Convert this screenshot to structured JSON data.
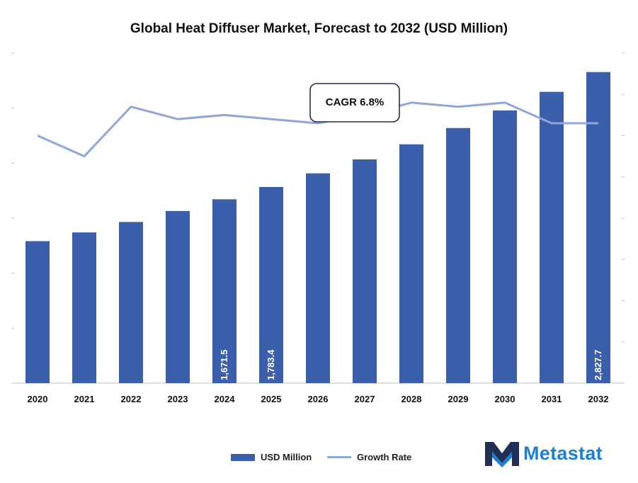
{
  "chart_data": {
    "type": "bar",
    "title": "Global Heat Diffuser Market, Forecast to 2032 (USD Million)",
    "categories": [
      "2020",
      "2021",
      "2022",
      "2023",
      "2024",
      "2025",
      "2026",
      "2027",
      "2028",
      "2029",
      "2030",
      "2031",
      "2032"
    ],
    "series": [
      {
        "name": "USD Million",
        "kind": "bar",
        "axis": "left",
        "color": "#3b5fab",
        "values": [
          1291,
          1370,
          1465,
          1565,
          1671.5,
          1783.4,
          1907,
          2034,
          2171,
          2319,
          2479,
          2648,
          2827.7
        ]
      },
      {
        "name": "Growth Rate",
        "kind": "line",
        "axis": "right",
        "color": "#8fa6db",
        "values": [
          6.0,
          5.5,
          6.7,
          6.4,
          6.5,
          6.4,
          6.3,
          6.5,
          6.8,
          6.7,
          6.8,
          6.3,
          6.3
        ]
      }
    ],
    "data_labels": [
      "",
      "",
      "",
      "",
      "1,671.5",
      "1,783.4",
      "",
      "",
      "",
      "",
      "",
      "",
      "2,827.7"
    ],
    "ylim": [
      0,
      3000
    ],
    "y2lim": [
      0,
      8
    ],
    "xlabel": "",
    "ylabel": "",
    "legend": "bottom",
    "grid": false,
    "annotation": "CAGR 6.8%"
  },
  "brand": {
    "name": "Metastat",
    "color": "#1b7fd4",
    "icon": "metastat-m-logo-icon"
  },
  "colors": {
    "bar": "#3b5fab",
    "line": "#8fa6db",
    "axis": "#bfbfbf",
    "text": "#111111"
  }
}
